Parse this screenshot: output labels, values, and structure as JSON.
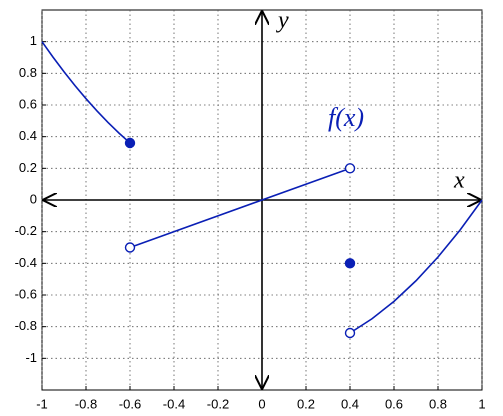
{
  "chart_data": {
    "type": "line",
    "xlabel": "x",
    "ylabel": "y",
    "annotation": "f(x)",
    "xlim": [
      -1,
      1
    ],
    "ylim": [
      -1.2,
      1.2
    ],
    "xticks": [
      -1,
      -0.8,
      -0.6,
      -0.4,
      -0.2,
      0,
      0.2,
      0.4,
      0.6,
      0.8,
      1
    ],
    "yticks": [
      -1,
      -0.8,
      -0.6,
      -0.4,
      -0.2,
      0,
      0.2,
      0.4,
      0.6,
      0.8,
      1
    ],
    "grid": true,
    "series": [
      {
        "mode": "line",
        "color": "#0a1fb5",
        "x": [
          -1,
          -0.95,
          -0.9,
          -0.85,
          -0.8,
          -0.75,
          -0.7,
          -0.65,
          -0.6
        ],
        "values": [
          1,
          0.9025,
          0.81,
          0.7225,
          0.64,
          0.5625,
          0.49,
          0.4225,
          0.36
        ]
      },
      {
        "mode": "line",
        "color": "#0a1fb5",
        "x": [
          -0.6,
          0.4
        ],
        "values": [
          -0.3,
          0.2
        ]
      },
      {
        "mode": "line",
        "color": "#0a1fb5",
        "x": [
          0.4,
          0.5,
          0.6,
          0.7,
          0.8,
          0.9,
          1
        ],
        "values": [
          -0.84,
          -0.75,
          -0.64,
          -0.51,
          -0.36,
          -0.19,
          0
        ]
      },
      {
        "mode": "marker",
        "filled": true,
        "color": "#0a1fb5",
        "x": [
          -0.6,
          0.4
        ],
        "values": [
          0.36,
          -0.4
        ]
      },
      {
        "mode": "marker",
        "filled": false,
        "color": "#0a1fb5",
        "x": [
          -0.6,
          0.4,
          0.4
        ],
        "values": [
          -0.3,
          0.2,
          -0.84
        ]
      }
    ]
  }
}
